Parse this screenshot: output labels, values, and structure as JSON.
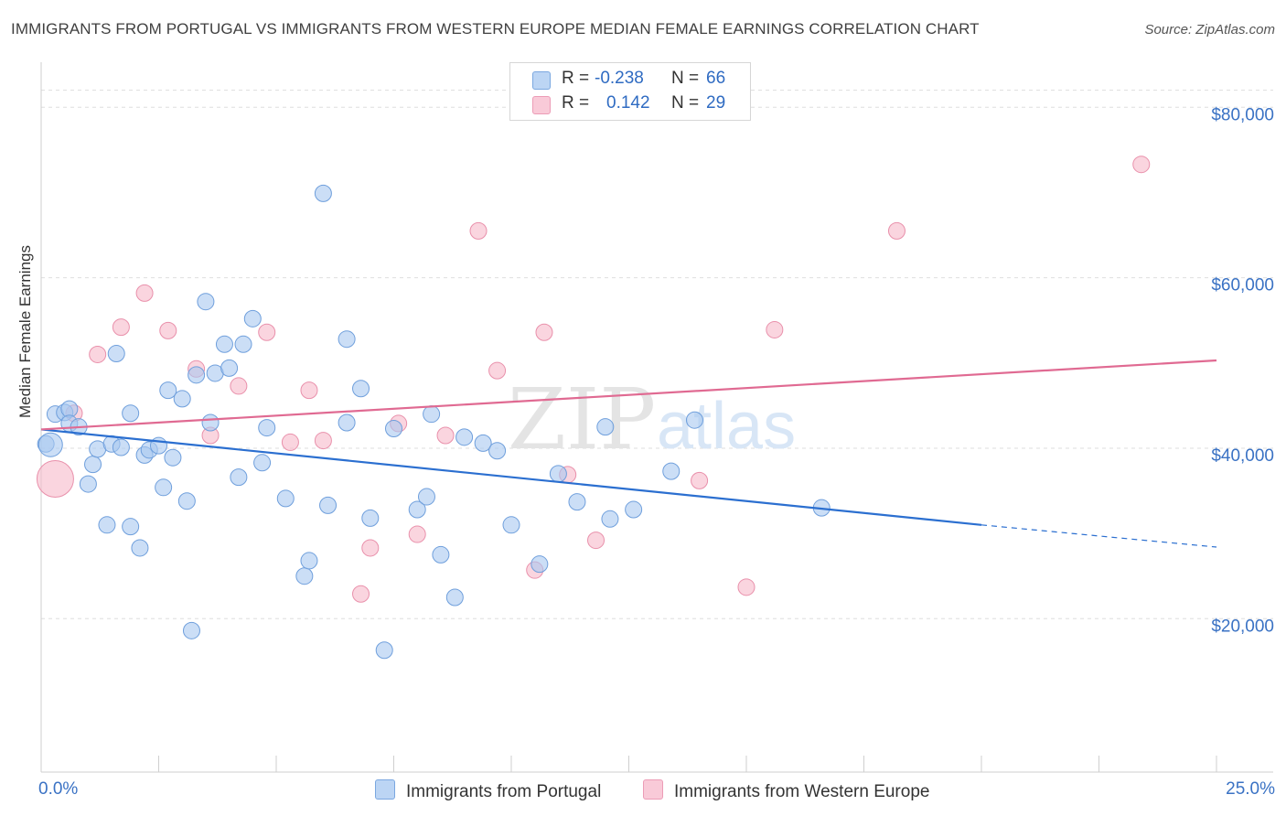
{
  "header": {
    "title": "IMMIGRANTS FROM PORTUGAL VS IMMIGRANTS FROM WESTERN EUROPE MEDIAN FEMALE EARNINGS CORRELATION CHART",
    "source": "Source: ZipAtlas.com"
  },
  "watermark": {
    "zip": "ZIP",
    "atlas": "atlas"
  },
  "colors": {
    "blue_fill": "#a9c8f0",
    "blue_stroke": "#6f9fdc",
    "blue_line": "#2b6fd0",
    "pink_fill": "#f6b9ca",
    "pink_stroke": "#e990ab",
    "pink_line": "#e06a92",
    "tick_label": "#3a72c4"
  },
  "legend": {
    "rows": [
      {
        "r_label": "R =",
        "r_value": "-0.238",
        "n_label": "N =",
        "n_value": "66"
      },
      {
        "r_label": "R =",
        "r_value": "0.142",
        "n_label": "N =",
        "n_value": "29"
      }
    ]
  },
  "bottom_legend": {
    "series1": "Immigrants from Portugal",
    "series2": "Immigrants from Western Europe"
  },
  "chart_data": {
    "type": "scatter",
    "title": "IMMIGRANTS FROM PORTUGAL VS IMMIGRANTS FROM WESTERN EUROPE MEDIAN FEMALE EARNINGS CORRELATION CHART",
    "xlabel": "",
    "ylabel": "Median Female Earnings",
    "xlim": [
      0,
      25
    ],
    "ylim": [
      2000,
      84000
    ],
    "x_tick_labels": [
      "0.0%",
      "25.0%"
    ],
    "y_ticks": [
      20000,
      40000,
      60000,
      80000
    ],
    "y_tick_labels": [
      "$20,000",
      "$40,000",
      "$60,000",
      "$80,000"
    ],
    "grid": "horizontal dashed",
    "legend_position": "top-center",
    "series": [
      {
        "name": "Immigrants from Portugal",
        "color": "#a9c8f0",
        "r": -0.238,
        "n": 66,
        "trend": {
          "x": [
            0,
            20
          ],
          "y": [
            42200,
            31000
          ],
          "dashed_to": [
            25,
            28400
          ]
        },
        "points": [
          [
            0.1,
            40500
          ],
          [
            0.3,
            44000
          ],
          [
            0.5,
            44200
          ],
          [
            0.6,
            44600
          ],
          [
            0.6,
            42900
          ],
          [
            0.8,
            42500
          ],
          [
            1.0,
            35800
          ],
          [
            1.1,
            38100
          ],
          [
            1.2,
            39900
          ],
          [
            1.4,
            31000
          ],
          [
            1.5,
            40500
          ],
          [
            1.6,
            51100
          ],
          [
            1.7,
            40100
          ],
          [
            1.9,
            44100
          ],
          [
            1.9,
            30800
          ],
          [
            2.1,
            28300
          ],
          [
            2.2,
            39200
          ],
          [
            2.3,
            39800
          ],
          [
            2.5,
            40300
          ],
          [
            2.6,
            35400
          ],
          [
            2.7,
            46800
          ],
          [
            2.8,
            38900
          ],
          [
            3.0,
            45800
          ],
          [
            3.1,
            33800
          ],
          [
            3.2,
            18600
          ],
          [
            3.3,
            48600
          ],
          [
            3.5,
            57200
          ],
          [
            3.6,
            43000
          ],
          [
            3.7,
            48800
          ],
          [
            3.9,
            52200
          ],
          [
            4.0,
            49400
          ],
          [
            4.2,
            36600
          ],
          [
            4.3,
            52200
          ],
          [
            4.5,
            55200
          ],
          [
            4.7,
            38300
          ],
          [
            4.8,
            42400
          ],
          [
            5.2,
            34100
          ],
          [
            5.6,
            25000
          ],
          [
            5.7,
            26800
          ],
          [
            6.0,
            69900
          ],
          [
            6.1,
            33300
          ],
          [
            6.5,
            43000
          ],
          [
            6.5,
            52800
          ],
          [
            6.8,
            47000
          ],
          [
            7.0,
            31800
          ],
          [
            7.3,
            16300
          ],
          [
            7.5,
            42300
          ],
          [
            8.0,
            32800
          ],
          [
            8.2,
            34300
          ],
          [
            8.3,
            44000
          ],
          [
            8.5,
            27500
          ],
          [
            8.8,
            22500
          ],
          [
            9.0,
            41300
          ],
          [
            9.4,
            40600
          ],
          [
            9.7,
            39700
          ],
          [
            10.0,
            31000
          ],
          [
            10.6,
            26400
          ],
          [
            11.0,
            37000
          ],
          [
            11.4,
            33700
          ],
          [
            12.0,
            42500
          ],
          [
            12.1,
            31700
          ],
          [
            12.6,
            32800
          ],
          [
            13.4,
            37300
          ],
          [
            13.9,
            43300
          ],
          [
            16.6,
            33000
          ],
          [
            0.2,
            40400
          ]
        ]
      },
      {
        "name": "Immigrants from Western Europe",
        "color": "#f6b9ca",
        "r": 0.142,
        "n": 29,
        "trend": {
          "x": [
            0,
            25
          ],
          "y": [
            42200,
            50300
          ]
        },
        "points": [
          [
            0.3,
            36400
          ],
          [
            0.7,
            44100
          ],
          [
            1.2,
            51000
          ],
          [
            1.7,
            54200
          ],
          [
            2.2,
            58200
          ],
          [
            2.7,
            53800
          ],
          [
            3.3,
            49300
          ],
          [
            3.6,
            41500
          ],
          [
            4.2,
            47300
          ],
          [
            4.8,
            53600
          ],
          [
            5.3,
            40700
          ],
          [
            5.7,
            46800
          ],
          [
            6.0,
            40900
          ],
          [
            6.8,
            22900
          ],
          [
            7.0,
            28300
          ],
          [
            7.6,
            42900
          ],
          [
            8.0,
            29900
          ],
          [
            8.6,
            41500
          ],
          [
            9.3,
            65500
          ],
          [
            9.7,
            49100
          ],
          [
            10.5,
            25700
          ],
          [
            10.7,
            53600
          ],
          [
            11.2,
            36900
          ],
          [
            11.8,
            29200
          ],
          [
            14.0,
            36200
          ],
          [
            15.0,
            23700
          ],
          [
            15.6,
            53900
          ],
          [
            18.2,
            65500
          ],
          [
            23.4,
            73300
          ]
        ]
      }
    ]
  }
}
